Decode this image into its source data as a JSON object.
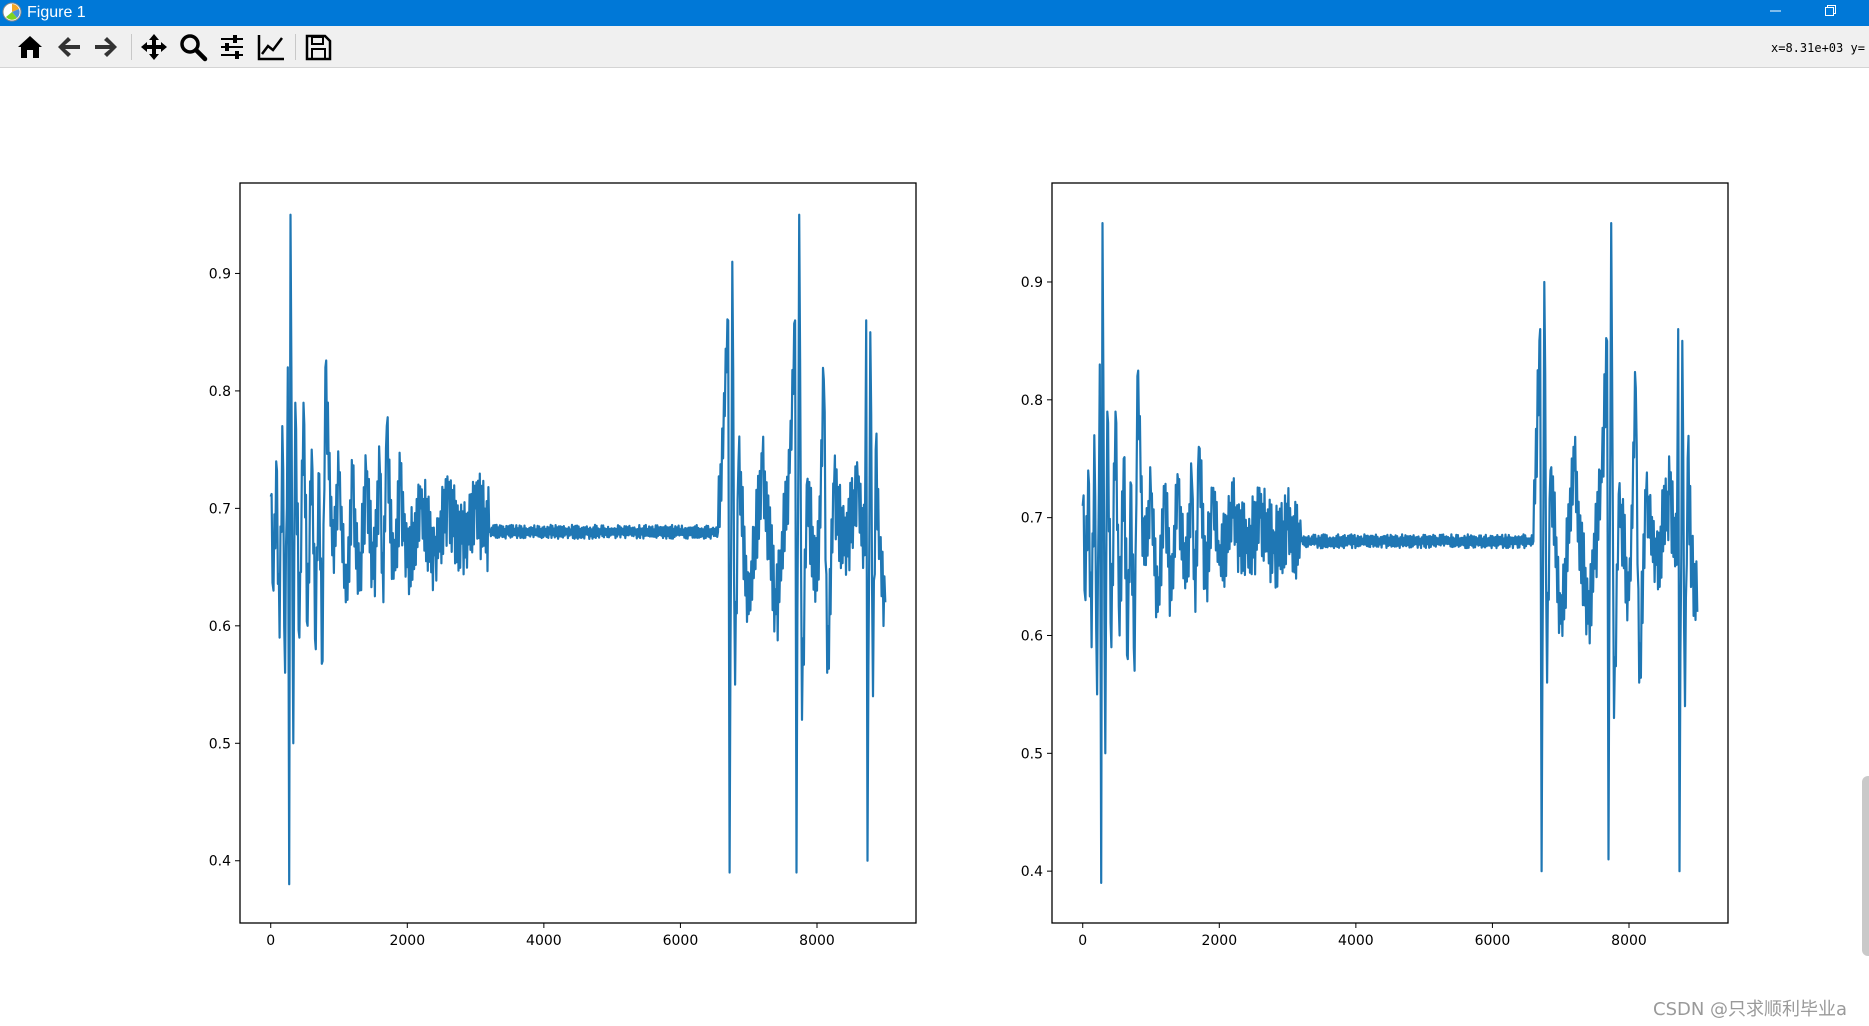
{
  "window": {
    "title": "Figure 1"
  },
  "toolbar": {
    "buttons": [
      {
        "name": "home",
        "icon": "home-icon"
      },
      {
        "name": "back",
        "icon": "arrow-left-icon"
      },
      {
        "name": "forward",
        "icon": "arrow-right-icon"
      },
      {
        "name": "pan",
        "icon": "move-arrows-icon"
      },
      {
        "name": "zoom",
        "icon": "magnifier-icon"
      },
      {
        "name": "subplots",
        "icon": "sliders-icon"
      },
      {
        "name": "customize",
        "icon": "chart-edit-icon"
      },
      {
        "name": "save",
        "icon": "floppy-disk-icon"
      }
    ],
    "coordinate_readout": "x=8.31e+03 y="
  },
  "watermark": "CSDN @只求顺利毕业a",
  "colors": {
    "titlebar": "#0078d7",
    "toolbar": "#f0f0f0",
    "line": "#1f77b4"
  },
  "chart_data": [
    {
      "type": "line",
      "title": "",
      "xlabel": "",
      "ylabel": "",
      "xlim": [
        -450,
        9450
      ],
      "ylim": [
        0.347,
        0.977
      ],
      "xticks": [
        0,
        2000,
        4000,
        6000,
        8000
      ],
      "xtick_labels": [
        "0",
        "2000",
        "4000",
        "6000",
        "8000"
      ],
      "yticks": [
        0.4,
        0.5,
        0.6,
        0.7,
        0.8,
        0.9
      ],
      "ytick_labels": [
        "0.4",
        "0.5",
        "0.6",
        "0.7",
        "0.8",
        "0.9"
      ],
      "grid": false,
      "legend": "none",
      "series": [
        {
          "color": "#1f77b4",
          "approx_points": [
            [
              0,
              0.71
            ],
            [
              40,
              0.63
            ],
            [
              80,
              0.74
            ],
            [
              130,
              0.59
            ],
            [
              170,
              0.77
            ],
            [
              210,
              0.56
            ],
            [
              250,
              0.82
            ],
            [
              270,
              0.38
            ],
            [
              290,
              0.95
            ],
            [
              330,
              0.5
            ],
            [
              360,
              0.79
            ],
            [
              420,
              0.59
            ],
            [
              480,
              0.79
            ],
            [
              540,
              0.6
            ],
            [
              600,
              0.75
            ],
            [
              660,
              0.58
            ],
            [
              700,
              0.73
            ],
            [
              760,
              0.57
            ],
            [
              800,
              0.82
            ],
            [
              900,
              0.66
            ],
            [
              1000,
              0.72
            ],
            [
              1100,
              0.62
            ],
            [
              1200,
              0.72
            ],
            [
              1300,
              0.63
            ],
            [
              1400,
              0.73
            ],
            [
              1500,
              0.64
            ],
            [
              1600,
              0.73
            ],
            [
              1650,
              0.62
            ],
            [
              1700,
              0.77
            ],
            [
              1800,
              0.64
            ],
            [
              1900,
              0.72
            ],
            [
              2000,
              0.65
            ],
            [
              2200,
              0.7
            ],
            [
              2400,
              0.66
            ],
            [
              2600,
              0.71
            ],
            [
              2800,
              0.67
            ],
            [
              3000,
              0.7
            ],
            [
              3200,
              0.68
            ],
            [
              6550,
              0.68
            ],
            [
              6700,
              0.86
            ],
            [
              6720,
              0.39
            ],
            [
              6760,
              0.91
            ],
            [
              6800,
              0.55
            ],
            [
              6850,
              0.74
            ],
            [
              7000,
              0.61
            ],
            [
              7200,
              0.74
            ],
            [
              7400,
              0.61
            ],
            [
              7600,
              0.73
            ],
            [
              7680,
              0.86
            ],
            [
              7700,
              0.39
            ],
            [
              7740,
              0.95
            ],
            [
              7780,
              0.52
            ],
            [
              7850,
              0.72
            ],
            [
              8000,
              0.63
            ],
            [
              8100,
              0.81
            ],
            [
              8150,
              0.56
            ],
            [
              8250,
              0.72
            ],
            [
              8400,
              0.66
            ],
            [
              8600,
              0.72
            ],
            [
              8700,
              0.66
            ],
            [
              8720,
              0.86
            ],
            [
              8740,
              0.4
            ],
            [
              8780,
              0.85
            ],
            [
              8820,
              0.54
            ],
            [
              8860,
              0.75
            ],
            [
              8920,
              0.66
            ],
            [
              9000,
              0.62
            ]
          ]
        }
      ]
    },
    {
      "type": "line",
      "title": "",
      "xlabel": "",
      "ylabel": "",
      "xlim": [
        -450,
        9450
      ],
      "ylim": [
        0.356,
        0.984
      ],
      "xticks": [
        0,
        2000,
        4000,
        6000,
        8000
      ],
      "xtick_labels": [
        "0",
        "2000",
        "4000",
        "6000",
        "8000"
      ],
      "yticks": [
        0.4,
        0.5,
        0.6,
        0.7,
        0.8,
        0.9
      ],
      "ytick_labels": [
        "0.4",
        "0.5",
        "0.6",
        "0.7",
        "0.8",
        "0.9"
      ],
      "grid": false,
      "legend": "none",
      "series": [
        {
          "color": "#1f77b4",
          "approx_points": [
            [
              0,
              0.71
            ],
            [
              40,
              0.63
            ],
            [
              80,
              0.74
            ],
            [
              130,
              0.59
            ],
            [
              170,
              0.77
            ],
            [
              210,
              0.55
            ],
            [
              250,
              0.83
            ],
            [
              270,
              0.39
            ],
            [
              290,
              0.95
            ],
            [
              330,
              0.5
            ],
            [
              360,
              0.79
            ],
            [
              420,
              0.59
            ],
            [
              480,
              0.79
            ],
            [
              540,
              0.6
            ],
            [
              600,
              0.75
            ],
            [
              660,
              0.58
            ],
            [
              700,
              0.73
            ],
            [
              760,
              0.57
            ],
            [
              800,
              0.82
            ],
            [
              900,
              0.66
            ],
            [
              1000,
              0.72
            ],
            [
              1100,
              0.62
            ],
            [
              1200,
              0.72
            ],
            [
              1300,
              0.63
            ],
            [
              1400,
              0.73
            ],
            [
              1500,
              0.64
            ],
            [
              1600,
              0.73
            ],
            [
              1650,
              0.62
            ],
            [
              1700,
              0.76
            ],
            [
              1800,
              0.64
            ],
            [
              1900,
              0.72
            ],
            [
              2000,
              0.66
            ],
            [
              2200,
              0.7
            ],
            [
              2400,
              0.67
            ],
            [
              2600,
              0.7
            ],
            [
              2800,
              0.67
            ],
            [
              3000,
              0.69
            ],
            [
              3200,
              0.68
            ],
            [
              6600,
              0.68
            ],
            [
              6700,
              0.86
            ],
            [
              6720,
              0.4
            ],
            [
              6760,
              0.9
            ],
            [
              6800,
              0.56
            ],
            [
              6850,
              0.74
            ],
            [
              7000,
              0.61
            ],
            [
              7200,
              0.74
            ],
            [
              7400,
              0.61
            ],
            [
              7600,
              0.73
            ],
            [
              7680,
              0.85
            ],
            [
              7700,
              0.41
            ],
            [
              7740,
              0.95
            ],
            [
              7780,
              0.53
            ],
            [
              7850,
              0.72
            ],
            [
              8000,
              0.63
            ],
            [
              8100,
              0.81
            ],
            [
              8150,
              0.56
            ],
            [
              8250,
              0.72
            ],
            [
              8400,
              0.66
            ],
            [
              8600,
              0.72
            ],
            [
              8700,
              0.66
            ],
            [
              8720,
              0.86
            ],
            [
              8740,
              0.4
            ],
            [
              8780,
              0.85
            ],
            [
              8820,
              0.54
            ],
            [
              8860,
              0.75
            ],
            [
              8920,
              0.66
            ],
            [
              9000,
              0.62
            ]
          ]
        }
      ]
    }
  ]
}
